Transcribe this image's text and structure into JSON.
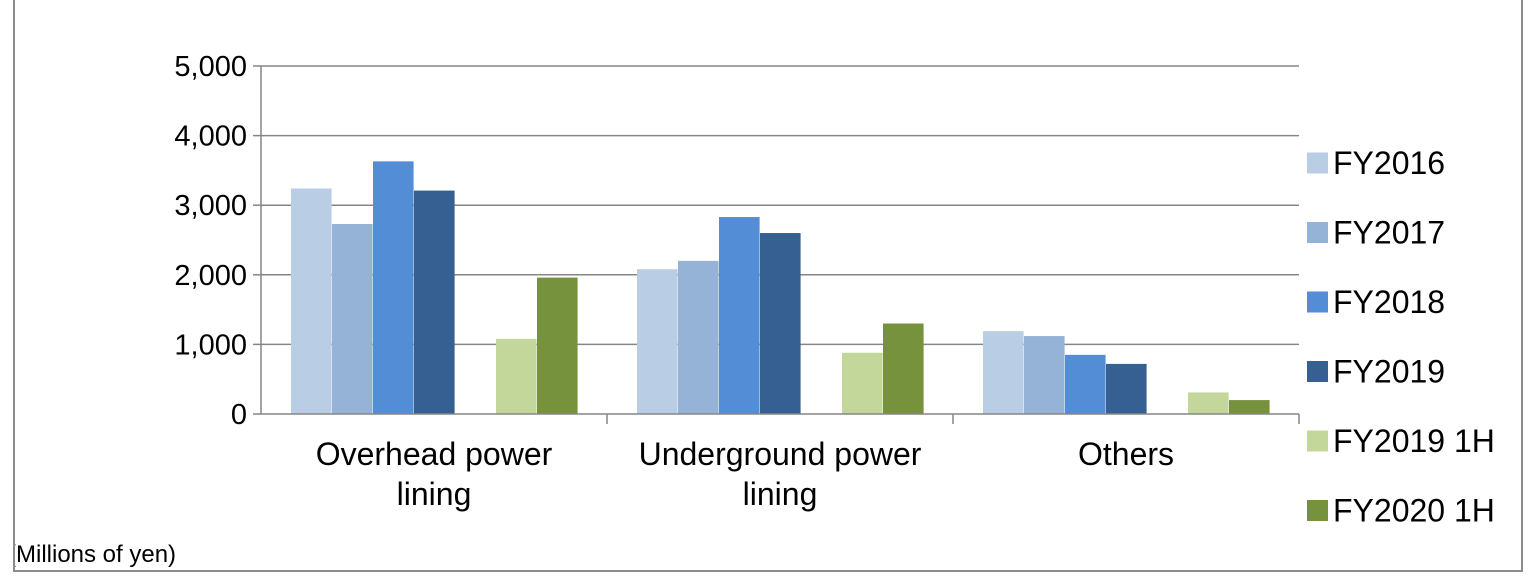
{
  "chart_data": {
    "type": "bar",
    "title": "",
    "xlabel": "",
    "ylabel": "",
    "unit_note": "(Millions of yen)",
    "categories": [
      [
        "Overhead power",
        "lining"
      ],
      [
        "Underground power",
        "lining"
      ],
      [
        "Others"
      ]
    ],
    "ylim": [
      0,
      5000
    ],
    "yticks": [
      0,
      1000,
      2000,
      3000,
      4000,
      5000
    ],
    "ytick_labels": [
      "0",
      "1,000",
      "2,000",
      "3,000",
      "4,000",
      "5,000"
    ],
    "grid": true,
    "legend_position": "right",
    "series": [
      {
        "name": "FY2016",
        "color": "#b9cde5",
        "values": [
          3240,
          2080,
          1190
        ]
      },
      {
        "name": "FY2017",
        "color": "#95b3d7",
        "values": [
          2730,
          2200,
          1120
        ]
      },
      {
        "name": "FY2018",
        "color": "#538dd5",
        "values": [
          3630,
          2830,
          850
        ]
      },
      {
        "name": "FY2019",
        "color": "#366092",
        "values": [
          3210,
          2600,
          720
        ]
      },
      {
        "name": "FY2019 1H",
        "color": "#c4d79b",
        "values": [
          1080,
          880,
          310
        ]
      },
      {
        "name": "FY2020 1H",
        "color": "#76923c",
        "values": [
          1960,
          1300,
          200
        ]
      }
    ]
  }
}
